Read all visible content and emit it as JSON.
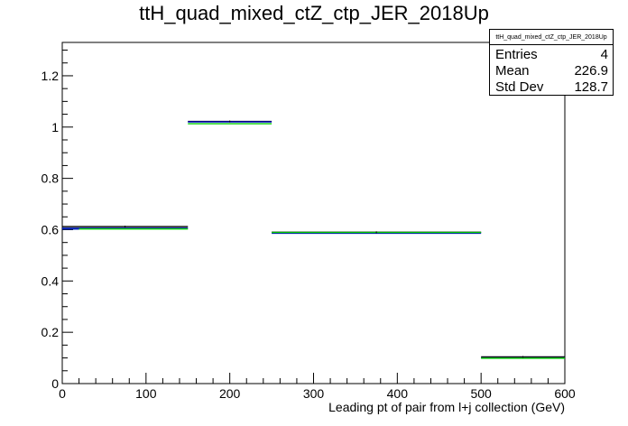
{
  "chart_data": {
    "type": "bar",
    "title": "ttH_quad_mixed_ctZ_ctp_JER_2018Up",
    "xlabel": "Leading pt of pair from l+j collection (GeV)",
    "ylabel": "",
    "xlim": [
      0,
      600
    ],
    "ylim": [
      0,
      1.33
    ],
    "x_ticks": [
      "0",
      "100",
      "200",
      "300",
      "400",
      "500",
      "600"
    ],
    "y_ticks": [
      "0",
      "0.2",
      "0.4",
      "0.6",
      "0.8",
      "1",
      "1.2"
    ],
    "bins": [
      {
        "low": 0,
        "high": 150,
        "value": 0.605
      },
      {
        "low": 150,
        "high": 250,
        "value": 1.015
      },
      {
        "low": 250,
        "high": 500,
        "value": 0.585
      },
      {
        "low": 500,
        "high": 600,
        "value": 0.1
      }
    ],
    "series": [
      {
        "color": "#000000",
        "values": [
          0.612,
          1.022,
          0.59,
          0.104
        ]
      },
      {
        "color": "#0000cc",
        "values": [
          0.606,
          1.02,
          0.586,
          0.1
        ]
      },
      {
        "color": "#00cc00",
        "values": [
          0.603,
          1.013,
          0.589,
          0.099
        ]
      }
    ],
    "grid": false,
    "legend": "top-right"
  },
  "stats": {
    "title": "ttH_quad_mixed_ctZ_ctp_JER_2018Up",
    "entries_label": "Entries",
    "entries": "4",
    "mean_label": "Mean",
    "mean": "226.9",
    "stddev_label": "Std Dev",
    "stddev": "128.7"
  }
}
